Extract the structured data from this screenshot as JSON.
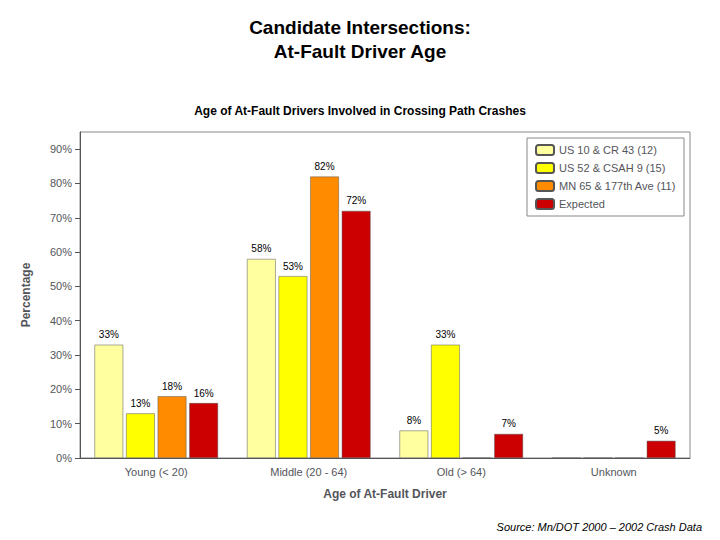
{
  "chart_data": {
    "type": "bar",
    "title": "Candidate Intersections:\nAt-Fault Driver Age",
    "subtitle": "Age of At-Fault Drivers Involved in Crossing Path Crashes",
    "xlabel": "Age of At-Fault Driver",
    "ylabel": "Percentage",
    "annotations": [
      "Source: Mn/DOT 2000 – 2002 Crash Data"
    ],
    "categories": [
      "Young (< 20)",
      "Middle (20 - 64)",
      "Old (> 64)",
      "Unknown"
    ],
    "series": [
      {
        "name": "US 10 & CR 43 (12)",
        "color": "#FFFFA0",
        "values": [
          33,
          58,
          8,
          0
        ],
        "value_labels": [
          "33%",
          "58%",
          "8%",
          null
        ]
      },
      {
        "name": "US 52 & CSAH 9 (15)",
        "color": "#FFFF00",
        "values": [
          13,
          53,
          33,
          0
        ],
        "value_labels": [
          "13%",
          "53%",
          "33%",
          null
        ]
      },
      {
        "name": "MN 65 & 177th Ave (11)",
        "color": "#FF8C00",
        "values": [
          18,
          82,
          0,
          0
        ],
        "value_labels": [
          "18%",
          "82%",
          null,
          null
        ]
      },
      {
        "name": "Expected",
        "color": "#CC0000",
        "values": [
          16,
          72,
          7,
          5
        ],
        "value_labels": [
          "16%",
          "72%",
          "7%",
          "5%"
        ]
      }
    ],
    "ylim": [
      0,
      95
    ],
    "yticks": [
      {
        "value": 0,
        "label": "0%"
      },
      {
        "value": 10,
        "label": "10%"
      },
      {
        "value": 20,
        "label": "20%"
      },
      {
        "value": 30,
        "label": "30%"
      },
      {
        "value": 40,
        "label": "40%"
      },
      {
        "value": 50,
        "label": "50%"
      },
      {
        "value": 60,
        "label": "60%"
      },
      {
        "value": 70,
        "label": "70%"
      },
      {
        "value": 80,
        "label": "80%"
      },
      {
        "value": 90,
        "label": "90%"
      }
    ],
    "grid": false,
    "legend": "upper right",
    "data_labels": true
  }
}
